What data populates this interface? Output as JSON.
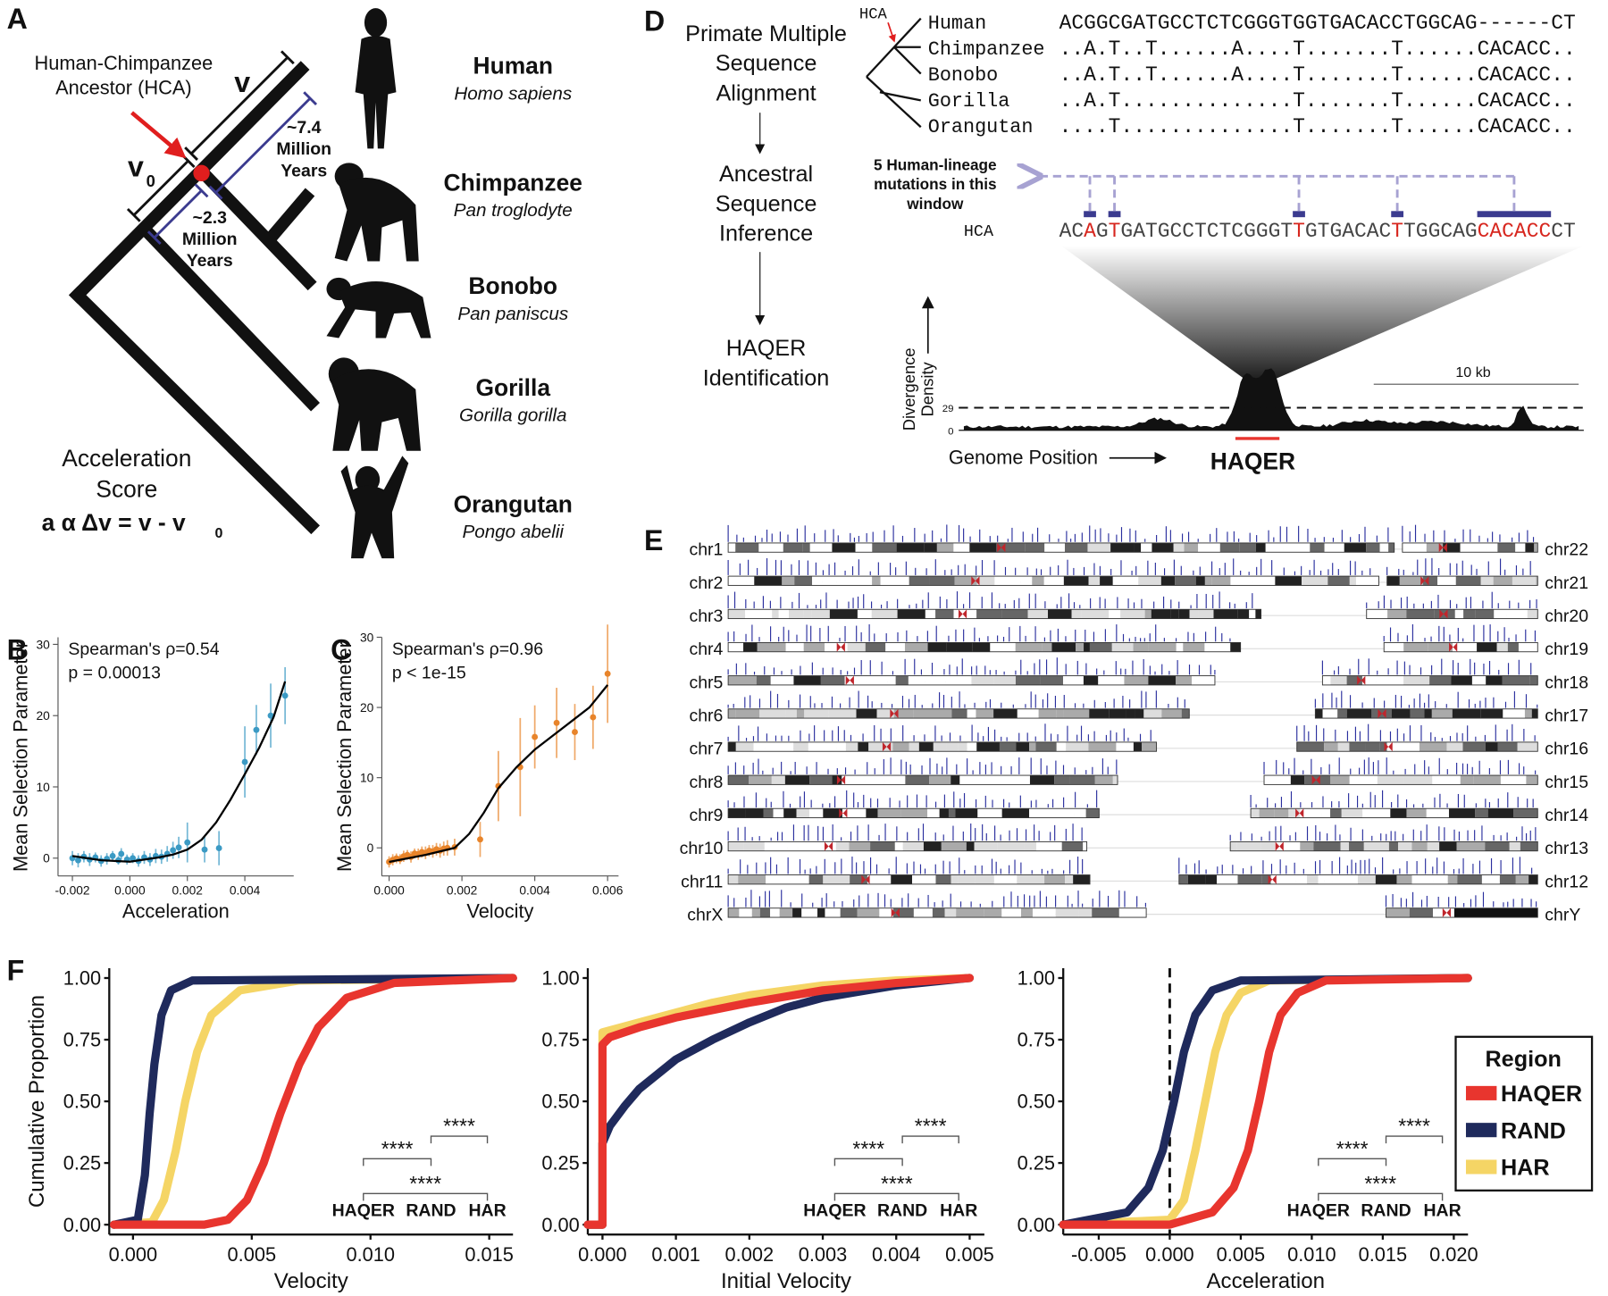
{
  "panels": {
    "panel_a": {
      "label": "A",
      "hca_label": [
        "Human-Chimpanzee",
        "Ancestor (HCA)"
      ],
      "v_label": "v",
      "v0_label": "v",
      "v0_subscript": "0",
      "branch_long": [
        "~7.4",
        "Million",
        "Years"
      ],
      "branch_short": [
        "~2.3",
        "Million",
        "Years"
      ],
      "species": [
        {
          "name": "Human",
          "latin": "Homo sapiens"
        },
        {
          "name": "Chimpanzee",
          "latin": "Pan troglodyte"
        },
        {
          "name": "Bonobo",
          "latin": "Pan paniscus"
        },
        {
          "name": "Gorilla",
          "latin": "Gorilla gorilla"
        },
        {
          "name": "Orangutan",
          "latin": "Pongo abelii"
        }
      ],
      "score_label": [
        "Acceleration",
        "Score"
      ],
      "formula": "a α Δv = v - v",
      "formula_subscript": "0"
    },
    "panel_d": {
      "label": "D",
      "flow": [
        [
          "Primate Multiple",
          "Sequence",
          "Alignment"
        ],
        [
          "Ancestral",
          "Sequence",
          "Inference"
        ],
        [
          "HAQER",
          "Identification"
        ]
      ],
      "tree_label": "HCA",
      "rows": [
        {
          "name": "Human",
          "sequence": "ACGGCGATGCCTCTCGGGTGGTGACACCTGGCAG------CT"
        },
        {
          "name": "Chimpanzee",
          "sequence": "..A.T..T......A....T.......T......CACACC.."
        },
        {
          "name": "Bonobo",
          "sequence": "..A.T..T......A....T.......T......CACACC.."
        },
        {
          "name": "Gorilla",
          "sequence": "..A.T..............T.......T......CACACC.."
        },
        {
          "name": "Orangutan",
          "sequence": "....T..............T.......T......CACACC.."
        }
      ],
      "mutation_note": [
        "5 Human-lineage",
        "mutations in this",
        "window"
      ],
      "hca_row_label": "HCA",
      "hca_segments": [
        {
          "text": "AC",
          "color": "#444444"
        },
        {
          "text": "A",
          "color": "#d7261e"
        },
        {
          "text": "G",
          "color": "#444444"
        },
        {
          "text": "T",
          "color": "#d7261e"
        },
        {
          "text": "GATGCCTCTCGGGT",
          "color": "#444444"
        },
        {
          "text": "T",
          "color": "#d7261e"
        },
        {
          "text": "GTGACAC",
          "color": "#444444"
        },
        {
          "text": "T",
          "color": "#d7261e"
        },
        {
          "text": "TGGCAG",
          "color": "#444444"
        },
        {
          "text": "CACACC",
          "color": "#d7261e"
        },
        {
          "text": "CT",
          "color": "#444444"
        }
      ],
      "density_ylabel": [
        "Divergence",
        "Density"
      ],
      "density_ticks": [
        0,
        29
      ],
      "scale_label": "10 kb",
      "xlabel": "Genome Position",
      "region_label": "HAQER"
    },
    "panel_e": {
      "label": "E",
      "left": [
        "chr1",
        "chr2",
        "chr3",
        "chr4",
        "chr5",
        "chr6",
        "chr7",
        "chr8",
        "chr9",
        "chr10",
        "chr11",
        "chrX"
      ],
      "right": [
        "chr22",
        "chr21",
        "chr20",
        "chr19",
        "chr18",
        "chr17",
        "chr16",
        "chr15",
        "chr14",
        "chr13",
        "chr12",
        "chrY"
      ]
    }
  },
  "chart_data": [
    {
      "panel": "B",
      "type": "scatter",
      "annotation": [
        "Spearman's ρ=0.54",
        "p = 0.00013"
      ],
      "xlabel": "Acceleration",
      "ylabel": "Mean Selection Parameter",
      "xlim": [
        -0.0025,
        0.0057
      ],
      "ylim": [
        -2.5,
        31
      ],
      "xticks": [
        -0.002,
        {
          "value": 0,
          "label": "0.000"
        },
        0.002,
        0.004
      ],
      "yticks": [
        0,
        10,
        20,
        30
      ],
      "series": [
        {
          "style": "points",
          "color": "#3b9ac4",
          "x": [
            -0.002,
            -0.0018,
            -0.0016,
            -0.0014,
            -0.0012,
            -0.001,
            -0.0008,
            -0.0006,
            -0.0004,
            -0.0003,
            -0.0001,
            0.0001,
            0.0003,
            0.0005,
            0.0007,
            0.0009,
            0.0011,
            0.0013,
            0.0015,
            0.0017,
            0.002,
            0.0026,
            0.0031,
            0.004,
            0.0044,
            0.0049,
            0.0054
          ],
          "values": [
            0.0,
            -0.3,
            0.2,
            -0.2,
            0.1,
            -0.4,
            -0.1,
            0.3,
            -0.3,
            0.6,
            -0.2,
            0.0,
            -0.4,
            0.1,
            -0.2,
            0.3,
            0.2,
            0.6,
            1.1,
            1.5,
            2.2,
            1.2,
            1.4,
            13.5,
            18.0,
            20.0,
            22.8
          ],
          "errors": [
            1.0,
            1.0,
            0.8,
            0.9,
            0.7,
            0.8,
            0.8,
            0.7,
            0.6,
            0.8,
            0.7,
            0.7,
            0.8,
            0.9,
            0.9,
            1.0,
            1.0,
            1.1,
            1.2,
            1.5,
            2.8,
            1.8,
            2.4,
            5.0,
            3.5,
            4.5,
            4.0
          ]
        },
        {
          "style": "line",
          "color": "#000000",
          "x": [
            -0.002,
            -0.001,
            0,
            0.001,
            0.0015,
            0.002,
            0.0025,
            0.003,
            0.0035,
            0.004,
            0.0045,
            0.005,
            0.0054
          ],
          "values": [
            0.3,
            -0.3,
            -0.5,
            0.1,
            0.5,
            1.2,
            2.6,
            5,
            8.2,
            11.8,
            15.5,
            19.8,
            24.8
          ]
        }
      ]
    },
    {
      "panel": "C",
      "type": "scatter",
      "annotation": [
        "Spearman's ρ=0.96",
        "p < 1e-15"
      ],
      "xlabel": "Velocity",
      "ylabel": "Mean Selection Parameter",
      "xlim": [
        -0.0002,
        0.0063
      ],
      "ylim": [
        -4,
        30
      ],
      "xticks": [
        {
          "value": 0,
          "label": "0.000"
        },
        0.002,
        0.004,
        0.006
      ],
      "yticks": [
        0,
        10,
        20,
        30
      ],
      "series": [
        {
          "style": "points",
          "color": "#e8842a",
          "x": [
            0,
            0.0001,
            0.0002,
            0.0003,
            0.0004,
            0.0005,
            0.0006,
            0.0007,
            0.0008,
            0.0009,
            0.001,
            0.0011,
            0.0012,
            0.0013,
            0.0014,
            0.0015,
            0.0016,
            0.0018,
            0.0025,
            0.003,
            0.0036,
            0.004,
            0.0046,
            0.0051,
            0.0056,
            0.006
          ],
          "values": [
            -2.0,
            -1.7,
            -1.5,
            -1.6,
            -1.2,
            -1.0,
            -1.3,
            -0.8,
            -0.9,
            -0.6,
            -0.7,
            -0.4,
            -0.5,
            -0.2,
            -0.4,
            -0.1,
            0.0,
            0.1,
            1.2,
            8.8,
            11.5,
            15.8,
            17.8,
            16.5,
            18.6,
            24.8
          ],
          "errors": [
            0.8,
            0.8,
            0.7,
            0.7,
            0.8,
            0.7,
            0.8,
            0.7,
            0.8,
            0.8,
            0.9,
            0.8,
            0.9,
            0.9,
            1.0,
            1.0,
            1.1,
            1.2,
            2.5,
            5.0,
            7.0,
            4.5,
            5.0,
            4.0,
            4.5,
            7.0
          ]
        },
        {
          "style": "line",
          "color": "#000000",
          "x": [
            0,
            0.001,
            0.0018,
            0.0022,
            0.0026,
            0.003,
            0.0035,
            0.004,
            0.0045,
            0.005,
            0.0055,
            0.006
          ],
          "values": [
            -2,
            -1,
            0,
            2,
            5,
            8.5,
            11.5,
            14,
            16,
            18,
            20,
            23.2
          ]
        }
      ]
    },
    {
      "panel": "F",
      "type": "line",
      "xlabel": "Velocity",
      "ylabel": "Cumulative Proportion",
      "xlim": [
        -0.001,
        0.016
      ],
      "ylim": [
        -0.04,
        1.04
      ],
      "xticks": [
        {
          "value": 0,
          "label": "0.000"
        },
        {
          "value": 0.005,
          "label": "0.005"
        },
        {
          "value": 0.01,
          "label": "0.010"
        },
        {
          "value": 0.015,
          "label": "0.015"
        }
      ],
      "yticks": [
        {
          "value": 0,
          "label": "0.00"
        },
        {
          "value": 0.25,
          "label": "0.25"
        },
        {
          "value": 0.5,
          "label": "0.50"
        },
        {
          "value": 0.75,
          "label": "0.75"
        },
        {
          "value": 1,
          "label": "1.00"
        }
      ],
      "annotations": [
        "****",
        "****",
        "****"
      ],
      "series": [
        {
          "name": "HAQER",
          "color": "#e8352e",
          "x": [
            -0.0008,
            0.003,
            0.004,
            0.0048,
            0.0055,
            0.0062,
            0.007,
            0.0078,
            0.009,
            0.011,
            0.016
          ],
          "values": [
            0,
            0,
            0.02,
            0.1,
            0.25,
            0.45,
            0.65,
            0.8,
            0.92,
            0.98,
            1
          ]
        },
        {
          "name": "RAND",
          "color": "#1f2a5c",
          "x": [
            -0.0008,
            0.0002,
            0.0005,
            0.0007,
            0.0009,
            0.0012,
            0.0016,
            0.0025,
            0.016
          ],
          "values": [
            0,
            0.02,
            0.2,
            0.45,
            0.65,
            0.85,
            0.95,
            0.99,
            1
          ]
        },
        {
          "name": "HAR",
          "color": "#f5d565",
          "x": [
            -0.0008,
            0.0008,
            0.0013,
            0.0018,
            0.0022,
            0.0027,
            0.0033,
            0.0045,
            0.007,
            0.016
          ],
          "values": [
            0,
            0.01,
            0.1,
            0.3,
            0.5,
            0.7,
            0.85,
            0.95,
            0.99,
            1
          ]
        }
      ]
    },
    {
      "type": "line",
      "xlabel": "Initial Velocity",
      "xlim": [
        -0.0002,
        0.0052
      ],
      "ylim": [
        -0.04,
        1.04
      ],
      "xticks": [
        {
          "value": 0,
          "label": "0.000"
        },
        0.001,
        0.002,
        0.003,
        0.004,
        0.005
      ],
      "yticks": [
        {
          "value": 0,
          "label": "0.00"
        },
        {
          "value": 0.25,
          "label": "0.25"
        },
        {
          "value": 0.5,
          "label": "0.50"
        },
        {
          "value": 0.75,
          "label": "0.75"
        },
        {
          "value": 1,
          "label": "1.00"
        }
      ],
      "annotations": [
        "****",
        "****",
        "****"
      ],
      "series": [
        {
          "name": "HAQER",
          "color": "#e8352e",
          "x": [
            -0.0002,
            0,
            0,
            0.0001,
            0.0005,
            0.001,
            0.0015,
            0.002,
            0.003,
            0.004,
            0.005
          ],
          "values": [
            0,
            0,
            0.73,
            0.76,
            0.8,
            0.84,
            0.87,
            0.9,
            0.95,
            0.98,
            1
          ]
        },
        {
          "name": "RAND",
          "color": "#1f2a5c",
          "x": [
            -0.0002,
            0,
            0,
            0.0001,
            0.0003,
            0.0005,
            0.001,
            0.0015,
            0.002,
            0.0025,
            0.003,
            0.004,
            0.005
          ],
          "values": [
            0,
            0,
            0.33,
            0.4,
            0.48,
            0.55,
            0.67,
            0.75,
            0.82,
            0.88,
            0.92,
            0.97,
            1
          ]
        },
        {
          "name": "HAR",
          "color": "#f5d565",
          "x": [
            -0.0002,
            0,
            0,
            0.0005,
            0.001,
            0.0015,
            0.002,
            0.003,
            0.004,
            0.005
          ],
          "values": [
            0,
            0,
            0.78,
            0.82,
            0.86,
            0.9,
            0.93,
            0.97,
            0.99,
            1
          ]
        }
      ]
    },
    {
      "type": "line",
      "xlabel": "Acceleration",
      "xlim": [
        -0.0075,
        0.021
      ],
      "ylim": [
        -0.04,
        1.04
      ],
      "xticks": [
        -0.005,
        {
          "value": 0,
          "label": "0.000"
        },
        {
          "value": 0.005,
          "label": "0.005"
        },
        {
          "value": 0.01,
          "label": "0.010"
        },
        {
          "value": 0.015,
          "label": "0.015"
        },
        {
          "value": 0.02,
          "label": "0.020"
        }
      ],
      "yticks": [
        {
          "value": 0,
          "label": "0.00"
        },
        {
          "value": 0.25,
          "label": "0.25"
        },
        {
          "value": 0.5,
          "label": "0.50"
        },
        {
          "value": 0.75,
          "label": "0.75"
        },
        {
          "value": 1,
          "label": "1.00"
        }
      ],
      "vline": 0,
      "annotations": [
        "****",
        "****",
        "****"
      ],
      "legend": {
        "title": "Region",
        "position": "right"
      },
      "series": [
        {
          "name": "HAQER",
          "color": "#e8352e",
          "x": [
            -0.0075,
            0,
            0.003,
            0.0045,
            0.0055,
            0.0063,
            0.007,
            0.0078,
            0.009,
            0.011,
            0.021
          ],
          "values": [
            0,
            0,
            0.05,
            0.15,
            0.3,
            0.5,
            0.7,
            0.85,
            0.94,
            0.99,
            1
          ]
        },
        {
          "name": "RAND",
          "color": "#1f2a5c",
          "x": [
            -0.0075,
            -0.003,
            -0.0015,
            -0.0005,
            0.0003,
            0.001,
            0.0018,
            0.003,
            0.005,
            0.021
          ],
          "values": [
            0,
            0.05,
            0.15,
            0.3,
            0.5,
            0.7,
            0.85,
            0.95,
            0.99,
            1
          ]
        },
        {
          "name": "HAR",
          "color": "#f5d565",
          "x": [
            -0.0075,
            0,
            0.001,
            0.0018,
            0.0025,
            0.0032,
            0.004,
            0.005,
            0.007,
            0.021
          ],
          "values": [
            0,
            0.02,
            0.1,
            0.3,
            0.5,
            0.7,
            0.85,
            0.94,
            0.99,
            1
          ]
        }
      ]
    }
  ]
}
